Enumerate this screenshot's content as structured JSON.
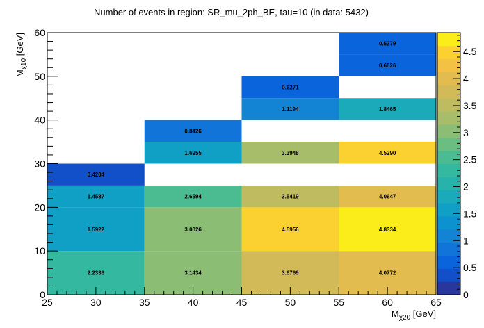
{
  "chart_data": {
    "type": "heatmap",
    "title": "Number of events in region: SR_mu_2ph_BE, tau=10 (in data: 5432)",
    "xlabel": {
      "base": "M",
      "sub": "χ20",
      "unit": " [GeV]"
    },
    "ylabel": {
      "base": "M",
      "sub": "χ10",
      "unit": " [GeV]"
    },
    "xlim": [
      25,
      65
    ],
    "ylim": [
      0,
      60
    ],
    "xticks": [
      "25",
      "30",
      "35",
      "40",
      "45",
      "50",
      "55",
      "60",
      "65"
    ],
    "yticks": [
      "0",
      "10",
      "20",
      "30",
      "40",
      "50",
      "60"
    ],
    "zlim": [
      0,
      4.85
    ],
    "zticks": [
      "0",
      "0.5",
      "1",
      "1.5",
      "2",
      "2.5",
      "3",
      "3.5",
      "4",
      "4.5"
    ],
    "cells": [
      {
        "x0": 25,
        "x1": 35,
        "y0": 0,
        "y1": 10,
        "value": 2.2336,
        "label": "2.2336"
      },
      {
        "x0": 35,
        "x1": 45,
        "y0": 0,
        "y1": 10,
        "value": 3.1434,
        "label": "3.1434"
      },
      {
        "x0": 45,
        "x1": 55,
        "y0": 0,
        "y1": 10,
        "value": 3.6769,
        "label": "3.6769"
      },
      {
        "x0": 55,
        "x1": 65,
        "y0": 0,
        "y1": 10,
        "value": 4.0772,
        "label": "4.0772"
      },
      {
        "x0": 25,
        "x1": 35,
        "y0": 10,
        "y1": 20,
        "value": 1.5922,
        "label": "1.5922"
      },
      {
        "x0": 35,
        "x1": 45,
        "y0": 10,
        "y1": 20,
        "value": 3.0026,
        "label": "3.0026"
      },
      {
        "x0": 45,
        "x1": 55,
        "y0": 10,
        "y1": 20,
        "value": 4.5956,
        "label": "4.5956"
      },
      {
        "x0": 55,
        "x1": 65,
        "y0": 10,
        "y1": 20,
        "value": 4.8334,
        "label": "4.8334"
      },
      {
        "x0": 25,
        "x1": 35,
        "y0": 20,
        "y1": 25,
        "value": 1.4587,
        "label": "1.4587"
      },
      {
        "x0": 35,
        "x1": 45,
        "y0": 20,
        "y1": 25,
        "value": 2.6594,
        "label": "2.6594"
      },
      {
        "x0": 45,
        "x1": 55,
        "y0": 20,
        "y1": 25,
        "value": 3.5419,
        "label": "3.5419"
      },
      {
        "x0": 55,
        "x1": 65,
        "y0": 20,
        "y1": 25,
        "value": 4.0647,
        "label": "4.0647"
      },
      {
        "x0": 25,
        "x1": 35,
        "y0": 25,
        "y1": 30,
        "value": 0.4204,
        "label": "0.4204"
      },
      {
        "x0": 35,
        "x1": 45,
        "y0": 30,
        "y1": 35,
        "value": 1.6955,
        "label": "1.6955"
      },
      {
        "x0": 45,
        "x1": 55,
        "y0": 30,
        "y1": 35,
        "value": 3.3948,
        "label": "3.3948"
      },
      {
        "x0": 55,
        "x1": 65,
        "y0": 30,
        "y1": 35,
        "value": 4.529,
        "label": "4.5290"
      },
      {
        "x0": 35,
        "x1": 45,
        "y0": 35,
        "y1": 40,
        "value": 0.8426,
        "label": "0.8426"
      },
      {
        "x0": 45,
        "x1": 55,
        "y0": 40,
        "y1": 45,
        "value": 1.1194,
        "label": "1.1194"
      },
      {
        "x0": 55,
        "x1": 65,
        "y0": 40,
        "y1": 45,
        "value": 1.8465,
        "label": "1.8465"
      },
      {
        "x0": 45,
        "x1": 55,
        "y0": 45,
        "y1": 50,
        "value": 0.6271,
        "label": "0.6271"
      },
      {
        "x0": 55,
        "x1": 65,
        "y0": 50,
        "y1": 55,
        "value": 0.6626,
        "label": "0.6626"
      },
      {
        "x0": 55,
        "x1": 65,
        "y0": 55,
        "y1": 60,
        "value": 0.5279,
        "label": "0.5279"
      }
    ],
    "colormap": "root-parula",
    "grid": false,
    "legend": "colorbar-right"
  }
}
